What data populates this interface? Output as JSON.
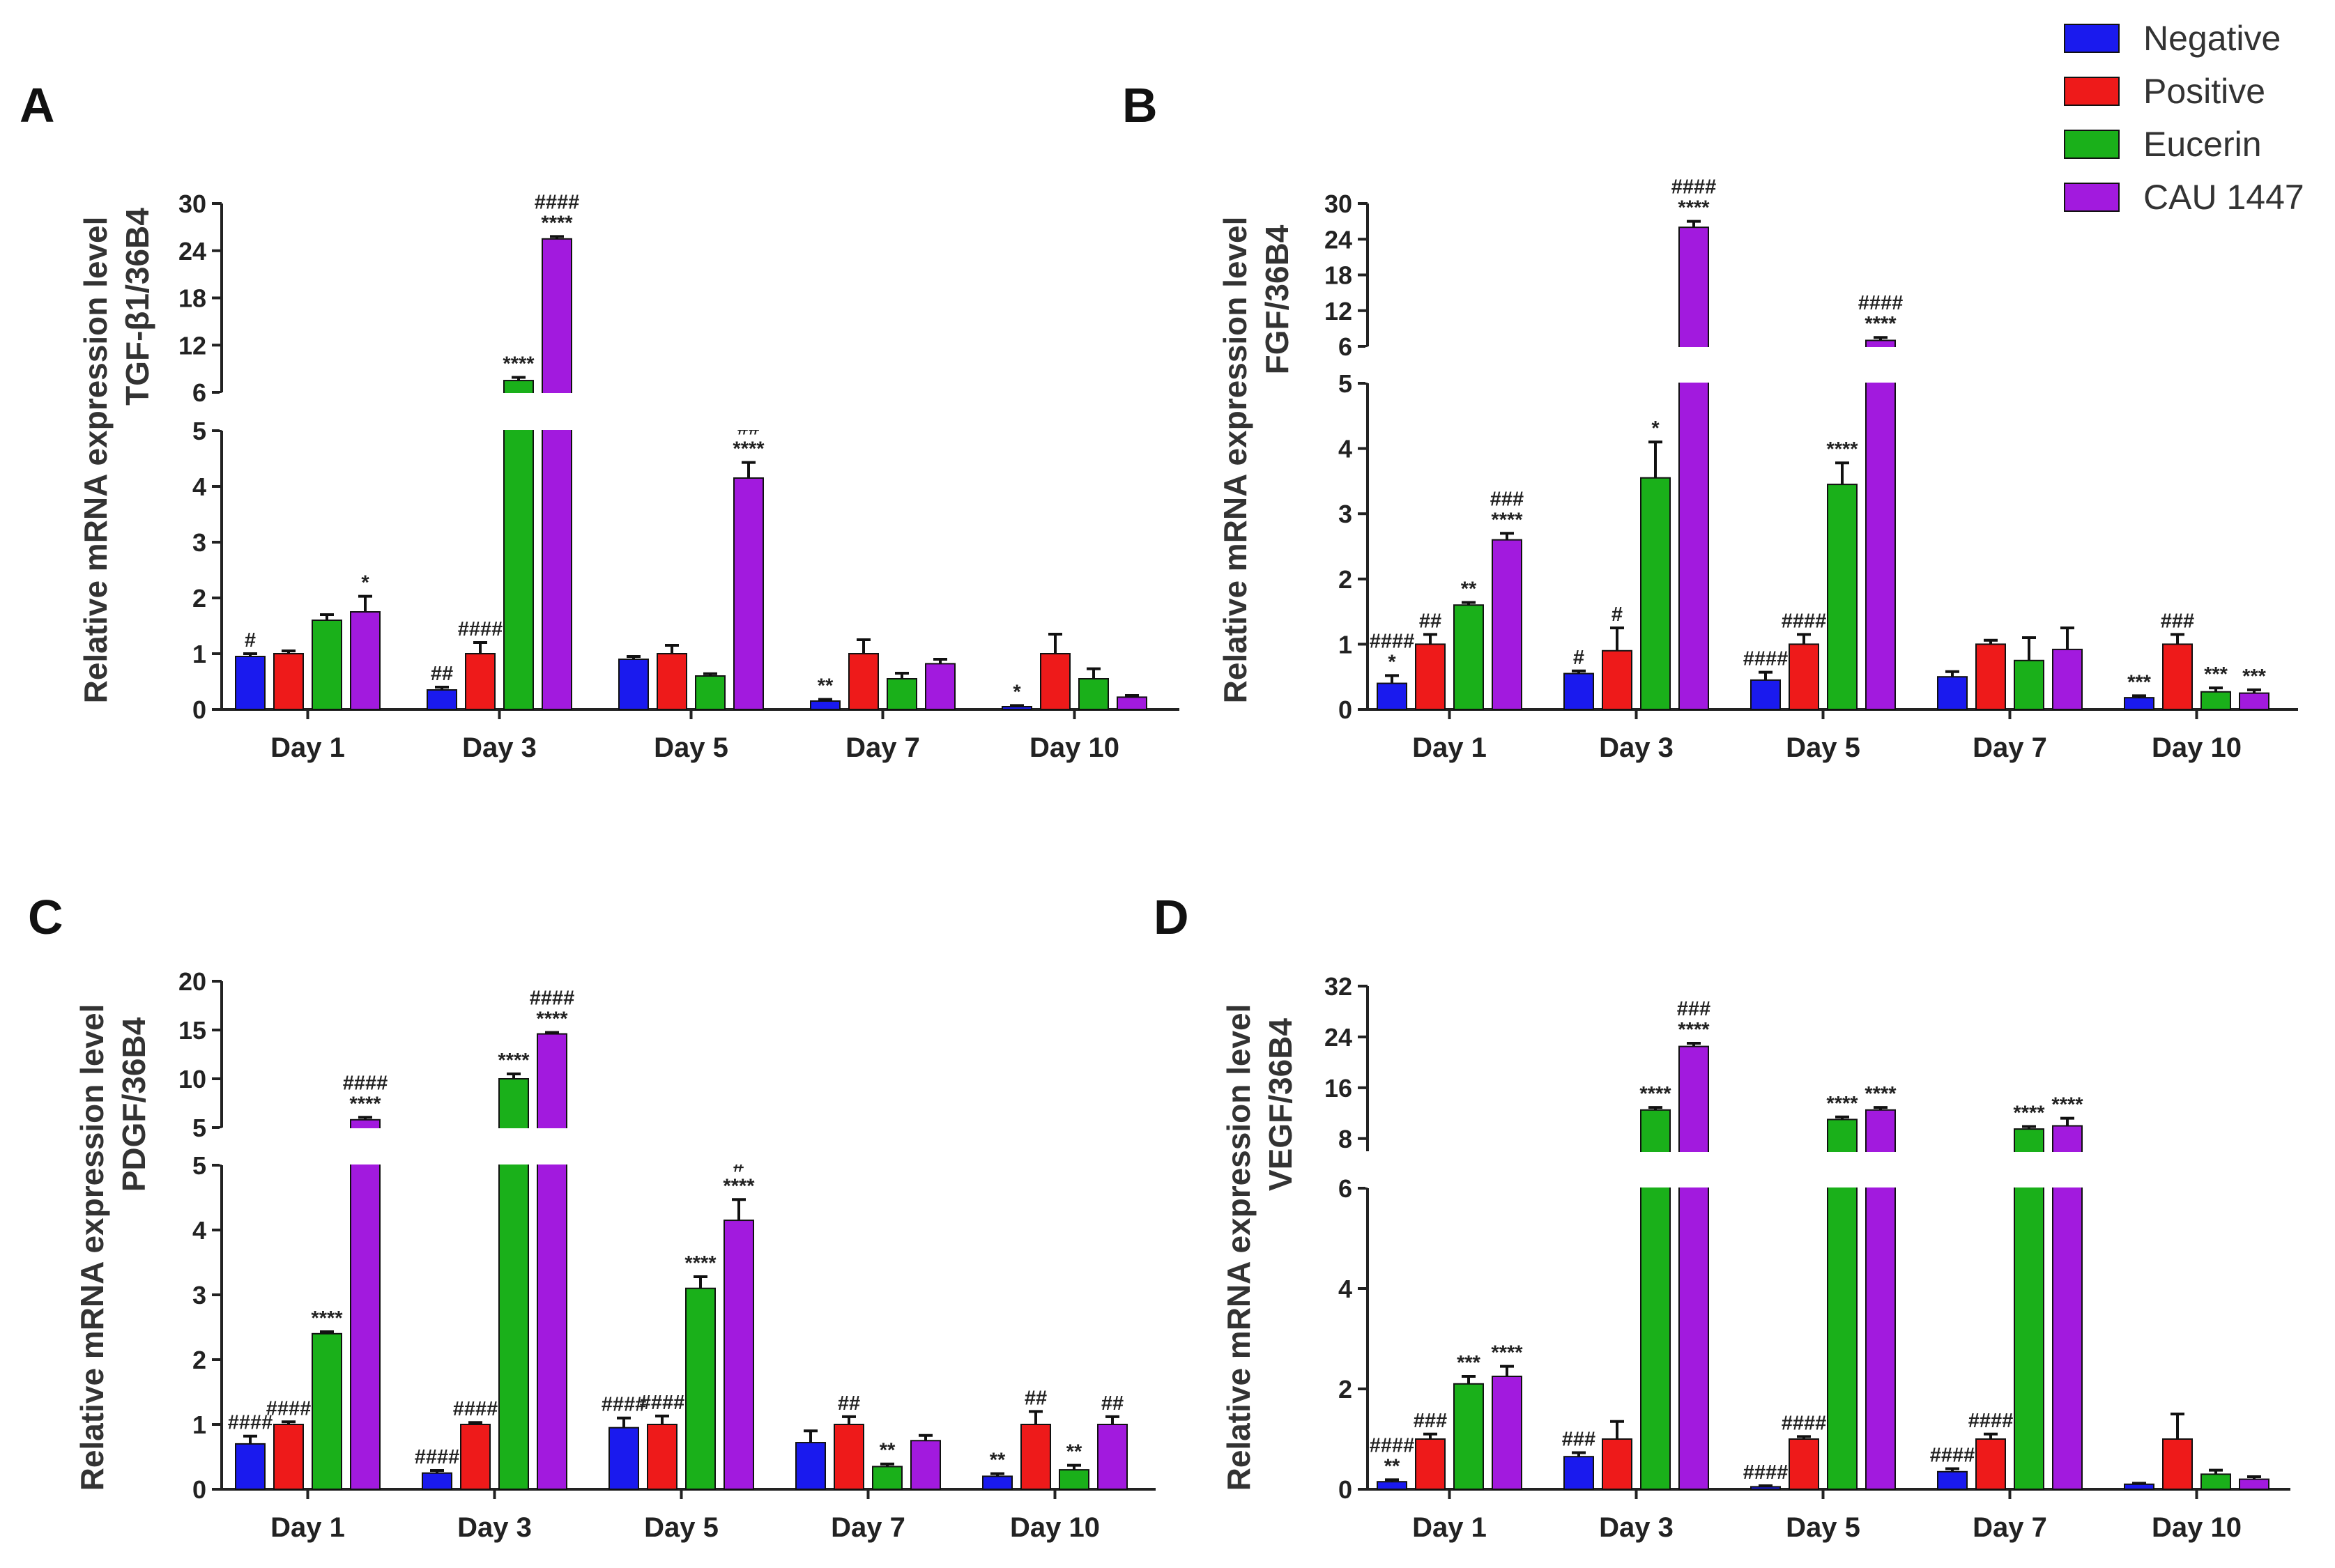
{
  "colors": {
    "Negative": "#1a1aee",
    "Positive": "#ee1a1a",
    "Eucerin": "#1ab01a",
    "CAU 1447": "#a21ade"
  },
  "legend": [
    "Negative",
    "Positive",
    "Eucerin",
    "CAU 1447"
  ],
  "chart_data": [
    {
      "type": "bar",
      "panel": "A",
      "ylabel": [
        "Relative mRNA expression level",
        "TGF-β1/36B4"
      ],
      "categories": [
        "Day 1",
        "Day 3",
        "Day 5",
        "Day 7",
        "Day 10"
      ],
      "lower_axis": {
        "range": [
          0,
          5
        ],
        "ticks": [
          0,
          1,
          2,
          3,
          4,
          5
        ]
      },
      "upper_axis": {
        "range": [
          6,
          30
        ],
        "ticks": [
          6,
          12,
          18,
          24,
          30
        ]
      },
      "series": [
        {
          "name": "Negative",
          "values": [
            0.95,
            0.35,
            0.9,
            0.15,
            0.05
          ],
          "errors": [
            0.05,
            0.05,
            0.05,
            0.03,
            0.02
          ],
          "marks": [
            [
              "#"
            ],
            [
              "##"
            ],
            [],
            [
              "**"
            ],
            [
              "*"
            ]
          ]
        },
        {
          "name": "Positive",
          "values": [
            1.0,
            1.0,
            1.0,
            1.0,
            1.0
          ],
          "errors": [
            0.05,
            0.2,
            0.15,
            0.25,
            0.35
          ],
          "marks": [
            [],
            [
              "####"
            ],
            [],
            [],
            []
          ]
        },
        {
          "name": "Eucerin",
          "values": [
            1.6,
            7.5,
            0.6,
            0.55,
            0.55
          ],
          "errors": [
            0.1,
            0.4,
            0.04,
            0.1,
            0.18
          ],
          "marks": [
            [],
            [
              "****"
            ],
            [],
            [],
            []
          ]
        },
        {
          "name": "CAU 1447",
          "values": [
            1.75,
            25.5,
            4.15,
            0.82,
            0.22
          ],
          "errors": [
            0.28,
            0.3,
            0.28,
            0.08,
            0.03
          ],
          "marks": [
            [
              "*"
            ],
            [
              "####",
              "****"
            ],
            [
              "##",
              "****"
            ],
            [],
            []
          ]
        }
      ]
    },
    {
      "type": "bar",
      "panel": "B",
      "ylabel": [
        "Relative mRNA expression level",
        "FGF/36B4"
      ],
      "categories": [
        "Day 1",
        "Day 3",
        "Day 5",
        "Day 7",
        "Day 10"
      ],
      "lower_axis": {
        "range": [
          0,
          5
        ],
        "ticks": [
          0,
          1,
          2,
          3,
          4,
          5
        ]
      },
      "upper_axis": {
        "range": [
          6,
          30
        ],
        "ticks": [
          6,
          12,
          18,
          24,
          30
        ]
      },
      "series": [
        {
          "name": "Negative",
          "values": [
            0.4,
            0.55,
            0.45,
            0.5,
            0.18
          ],
          "errors": [
            0.12,
            0.04,
            0.12,
            0.08,
            0.03
          ],
          "marks": [
            [
              "####",
              "*"
            ],
            [
              "#"
            ],
            [
              "####"
            ],
            [],
            [
              "***"
            ]
          ]
        },
        {
          "name": "Positive",
          "values": [
            1.0,
            0.9,
            1.0,
            1.0,
            1.0
          ],
          "errors": [
            0.15,
            0.35,
            0.15,
            0.06,
            0.15
          ],
          "marks": [
            [
              "##"
            ],
            [
              "#"
            ],
            [
              "####"
            ],
            [],
            [
              "###"
            ]
          ]
        },
        {
          "name": "Eucerin",
          "values": [
            1.6,
            3.55,
            3.45,
            0.75,
            0.27
          ],
          "errors": [
            0.04,
            0.55,
            0.33,
            0.35,
            0.06
          ],
          "marks": [
            [
              "**"
            ],
            [
              "*"
            ],
            [
              "****"
            ],
            [],
            [
              "***"
            ]
          ]
        },
        {
          "name": "CAU 1447",
          "values": [
            2.6,
            26.0,
            7.0,
            0.92,
            0.25
          ],
          "errors": [
            0.1,
            1.0,
            0.5,
            0.33,
            0.05
          ],
          "marks": [
            [
              "###",
              "****"
            ],
            [
              "####",
              "****"
            ],
            [
              "####",
              "****"
            ],
            [],
            [
              "***"
            ]
          ]
        }
      ]
    },
    {
      "type": "bar",
      "panel": "C",
      "ylabel": [
        "Relative mRNA expression level",
        "PDGF/36B4"
      ],
      "categories": [
        "Day 1",
        "Day 3",
        "Day 5",
        "Day 7",
        "Day 10"
      ],
      "lower_axis": {
        "range": [
          0,
          5
        ],
        "ticks": [
          0,
          1,
          2,
          3,
          4,
          5
        ]
      },
      "upper_axis": {
        "range": [
          5,
          20
        ],
        "ticks": [
          5,
          10,
          15,
          20
        ]
      },
      "series": [
        {
          "name": "Negative",
          "values": [
            0.7,
            0.25,
            0.95,
            0.72,
            0.2
          ],
          "errors": [
            0.12,
            0.04,
            0.15,
            0.18,
            0.04
          ],
          "marks": [
            [
              "####"
            ],
            [
              "####"
            ],
            [
              "####"
            ],
            [],
            [
              "**"
            ]
          ]
        },
        {
          "name": "Positive",
          "values": [
            1.0,
            1.0,
            1.0,
            1.0,
            1.0
          ],
          "errors": [
            0.04,
            0.03,
            0.13,
            0.12,
            0.2
          ],
          "marks": [
            [
              "####"
            ],
            [
              "####"
            ],
            [
              "####"
            ],
            [
              "##"
            ],
            [
              "##"
            ]
          ]
        },
        {
          "name": "Eucerin",
          "values": [
            2.4,
            10.0,
            3.1,
            0.35,
            0.3
          ],
          "errors": [
            0.03,
            0.5,
            0.18,
            0.04,
            0.07
          ],
          "marks": [
            [
              "****"
            ],
            [
              "****"
            ],
            [
              "****"
            ],
            [
              "**"
            ],
            [
              "**"
            ]
          ]
        },
        {
          "name": "CAU 1447",
          "values": [
            5.8,
            14.6,
            4.15,
            0.75,
            1.0
          ],
          "errors": [
            0.25,
            0.15,
            0.32,
            0.08,
            0.12
          ],
          "marks": [
            [
              "####",
              "****"
            ],
            [
              "####",
              "****"
            ],
            [
              "#",
              "****"
            ],
            [],
            [
              "##"
            ]
          ]
        }
      ]
    },
    {
      "type": "bar",
      "panel": "D",
      "ylabel": [
        "Relative mRNA expression level",
        "VEGF/36B4"
      ],
      "categories": [
        "Day 1",
        "Day 3",
        "Day 5",
        "Day 7",
        "Day 10"
      ],
      "lower_axis": {
        "range": [
          0,
          6
        ],
        "ticks": [
          0,
          2,
          4,
          6
        ]
      },
      "upper_axis": {
        "range": [
          6,
          32
        ],
        "ticks": [
          8,
          16,
          24,
          32
        ]
      },
      "series": [
        {
          "name": "Negative",
          "values": [
            0.15,
            0.65,
            0.05,
            0.35,
            0.1
          ],
          "errors": [
            0.04,
            0.08,
            0.02,
            0.06,
            0.02
          ],
          "marks": [
            [
              "####",
              "**"
            ],
            [
              "###"
            ],
            [
              "####"
            ],
            [
              "####"
            ],
            []
          ]
        },
        {
          "name": "Positive",
          "values": [
            1.0,
            1.0,
            1.0,
            1.0,
            1.0
          ],
          "errors": [
            0.1,
            0.35,
            0.05,
            0.1,
            0.5
          ],
          "marks": [
            [
              "###"
            ],
            [],
            [
              "####"
            ],
            [
              "####"
            ],
            []
          ]
        },
        {
          "name": "Eucerin",
          "values": [
            2.1,
            12.5,
            11.0,
            9.5,
            0.3
          ],
          "errors": [
            0.15,
            0.4,
            0.4,
            0.4,
            0.08
          ],
          "marks": [
            [
              "***"
            ],
            [
              "****"
            ],
            [
              "****"
            ],
            [
              "****"
            ],
            []
          ]
        },
        {
          "name": "CAU 1447",
          "values": [
            2.25,
            22.5,
            12.5,
            10.0,
            0.2
          ],
          "errors": [
            0.2,
            0.5,
            0.4,
            1.2,
            0.05
          ],
          "marks": [
            [
              "****"
            ],
            [
              "###",
              "****"
            ],
            [
              "****"
            ],
            [
              "****"
            ],
            []
          ]
        }
      ]
    }
  ]
}
